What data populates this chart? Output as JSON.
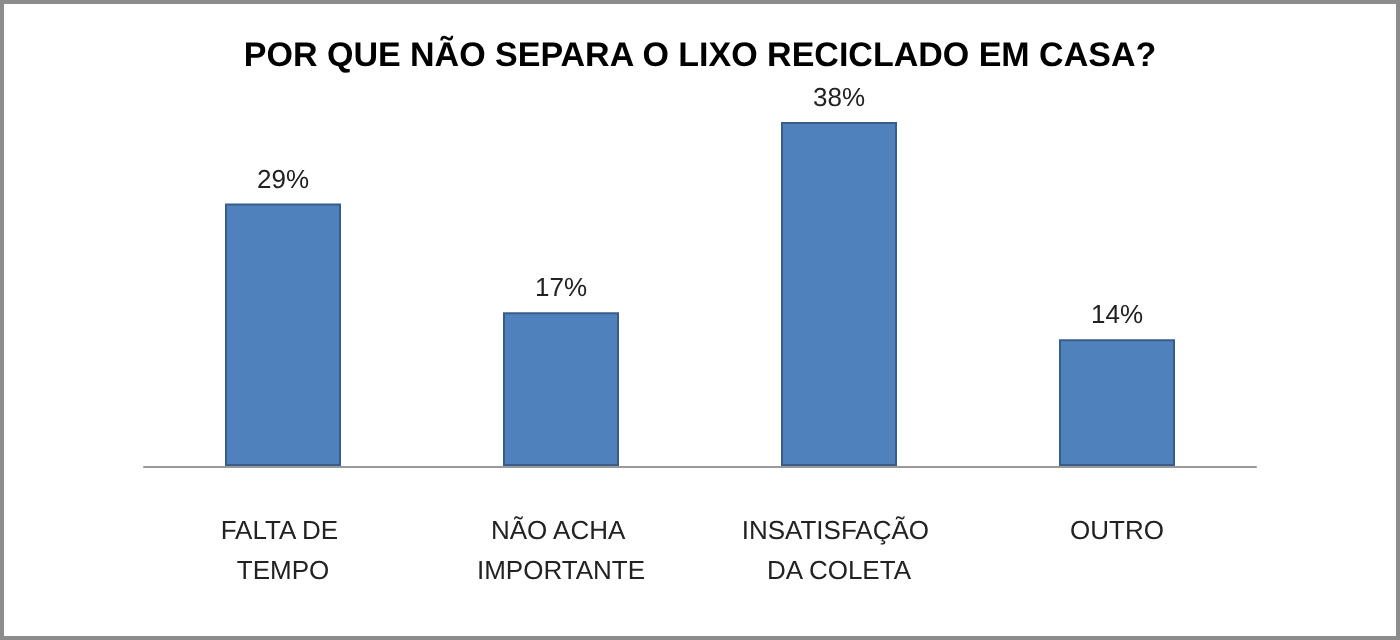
{
  "chart_data": {
    "type": "bar",
    "title": "POR QUE NÃO SEPARA O LIXO RECICLADO EM CASA?",
    "categories": [
      "FALTA DE TEMPO",
      "NÃO ACHA IMPORTANTE",
      "INSATISFAÇÃO DA COLETA",
      "OUTRO"
    ],
    "values": [
      29,
      17,
      38,
      14
    ],
    "value_labels": [
      "29%",
      "17%",
      "38%",
      "14%"
    ],
    "color": "#4f81bd"
  }
}
